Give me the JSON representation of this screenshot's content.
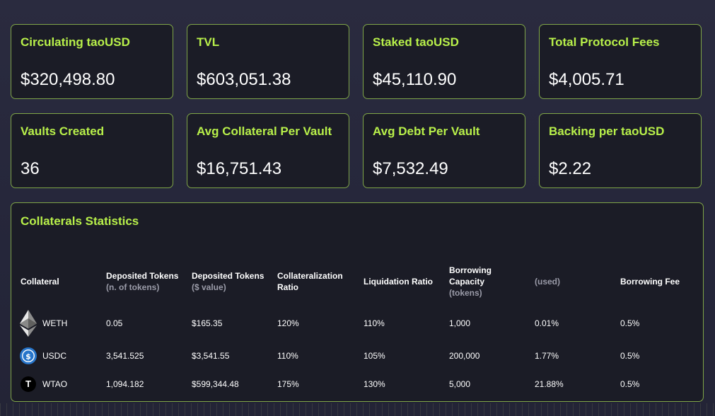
{
  "stats": [
    {
      "label": "Circulating taoUSD",
      "value": "$320,498.80"
    },
    {
      "label": "TVL",
      "value": "$603,051.38"
    },
    {
      "label": "Staked taoUSD",
      "value": "$45,110.90"
    },
    {
      "label": "Total Protocol Fees",
      "value": "$4,005.71"
    },
    {
      "label": "Vaults Created",
      "value": "36"
    },
    {
      "label": "Avg Collateral Per Vault",
      "value": "$16,751.43"
    },
    {
      "label": "Avg Debt Per Vault",
      "value": "$7,532.49"
    },
    {
      "label": "Backing per taoUSD",
      "value": "$2.22"
    }
  ],
  "collaterals": {
    "title": "Collaterals Statistics",
    "headers": {
      "collateral": "Collateral",
      "deposited_tokens": "Deposited Tokens",
      "deposited_tokens_sub": "(n. of tokens)",
      "deposited_value": "Deposited Tokens",
      "deposited_value_sub": "($ value)",
      "collat_ratio_1": "Collateralization",
      "collat_ratio_2": "Ratio",
      "liquidation_ratio": "Liquidation Ratio",
      "borrow_cap_1": "Borrowing",
      "borrow_cap_2": "Capacity",
      "borrow_cap_sub": "(tokens)",
      "used": "(used)",
      "borrowing_fee": "Borrowing Fee"
    },
    "rows": [
      {
        "name": "WETH",
        "icon": "ethereum-icon",
        "tokens": "0.05",
        "value": "$165.35",
        "collat_ratio": "120%",
        "liq_ratio": "110%",
        "capacity": "1,000",
        "used": "0.01%",
        "fee": "0.5%"
      },
      {
        "name": "USDC",
        "icon": "usdc-icon",
        "tokens": "3,541.525",
        "value": "$3,541.55",
        "collat_ratio": "110%",
        "liq_ratio": "105%",
        "capacity": "200,000",
        "used": "1.77%",
        "fee": "0.5%"
      },
      {
        "name": "WTAO",
        "icon": "tao-icon",
        "icon_glyph": "T",
        "tokens": "1,094.182",
        "value": "$599,344.48",
        "collat_ratio": "175%",
        "liq_ratio": "130%",
        "capacity": "5,000",
        "used": "21.88%",
        "fee": "0.5%"
      }
    ]
  },
  "colors": {
    "accent": "#b8f04a",
    "card_border": "#7fa548",
    "card_bg": "#1b1c26",
    "page_bg": "#26273b",
    "muted_text": "#9a9ba8",
    "usdc_blue": "#2775ca"
  }
}
